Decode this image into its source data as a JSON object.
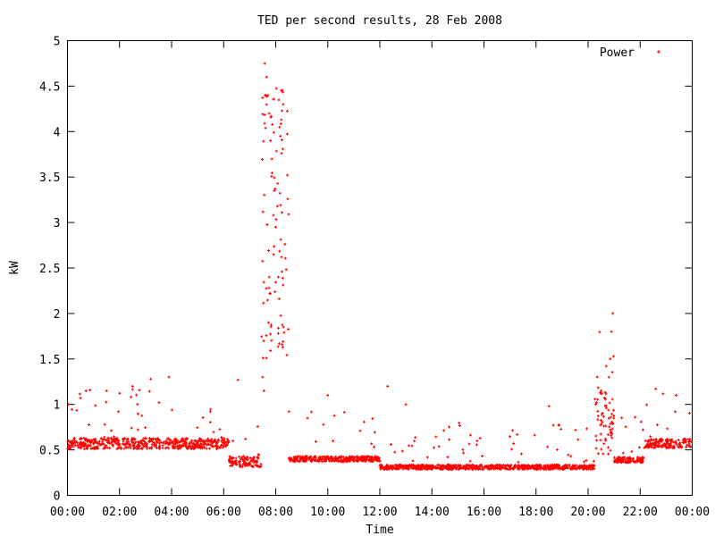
{
  "chart_data": {
    "type": "scatter",
    "title": "TED per second results, 28 Feb 2008",
    "xlabel": "Time",
    "ylabel": "kW",
    "x_ticks": [
      "00:00",
      "02:00",
      "04:00",
      "06:00",
      "08:00",
      "10:00",
      "12:00",
      "14:00",
      "16:00",
      "18:00",
      "20:00",
      "22:00",
      "00:00"
    ],
    "y_ticks": [
      "0",
      "0.5",
      "1",
      "1.5",
      "2",
      "2.5",
      "3",
      "3.5",
      "4",
      "4.5",
      "5"
    ],
    "xlim_hours": [
      0,
      24
    ],
    "ylim": [
      0,
      5
    ],
    "grid": false,
    "legend_position": "top-right",
    "series": [
      {
        "name": "Power",
        "color": "#ff0000",
        "marker": "plus",
        "segments": [
          {
            "start_hour": 0.0,
            "end_hour": 6.2,
            "base": 0.57,
            "spread": 0.06,
            "spike_prob": 0.06,
            "spike_max": 0.65
          },
          {
            "start_hour": 6.2,
            "end_hour": 7.45,
            "base": 0.37,
            "spread": 0.06,
            "spike_prob": 0.05,
            "spike_max": 0.35
          },
          {
            "start_hour": 7.45,
            "end_hour": 8.5,
            "base": 3.0,
            "spread": 1.5,
            "spike_prob": 0.0,
            "spike_max": 0.0
          },
          {
            "start_hour": 8.5,
            "end_hour": 12.0,
            "base": 0.4,
            "spread": 0.03,
            "spike_prob": 0.05,
            "spike_max": 0.6
          },
          {
            "start_hour": 12.0,
            "end_hour": 20.25,
            "base": 0.31,
            "spread": 0.025,
            "spike_prob": 0.05,
            "spike_max": 0.5
          },
          {
            "start_hour": 20.25,
            "end_hour": 21.0,
            "base": 0.8,
            "spread": 0.35,
            "spike_prob": 0.15,
            "spike_max": 1.1
          },
          {
            "start_hour": 21.0,
            "end_hour": 22.15,
            "base": 0.39,
            "spread": 0.03,
            "spike_prob": 0.05,
            "spike_max": 0.5
          },
          {
            "start_hour": 22.15,
            "end_hour": 24.0,
            "base": 0.57,
            "spread": 0.05,
            "spike_prob": 0.06,
            "spike_max": 0.55
          }
        ],
        "peak_points": [
          {
            "hour": 7.58,
            "kw": 4.75
          },
          {
            "hour": 7.65,
            "kw": 4.6
          },
          {
            "hour": 7.7,
            "kw": 4.4
          },
          {
            "hour": 7.75,
            "kw": 4.2
          },
          {
            "hour": 7.8,
            "kw": 3.9
          },
          {
            "hour": 7.85,
            "kw": 3.7
          },
          {
            "hour": 7.95,
            "kw": 3.35
          },
          {
            "hour": 8.0,
            "kw": 2.95
          },
          {
            "hour": 8.15,
            "kw": 4.05
          },
          {
            "hour": 8.18,
            "kw": 3.95
          },
          {
            "hour": 7.75,
            "kw": 2.4
          },
          {
            "hour": 7.72,
            "kw": 1.9
          },
          {
            "hour": 8.3,
            "kw": 1.85
          },
          {
            "hour": 8.1,
            "kw": 2.4
          },
          {
            "hour": 7.5,
            "kw": 1.3
          },
          {
            "hour": 7.55,
            "kw": 1.15
          },
          {
            "hour": 6.55,
            "kw": 1.27
          },
          {
            "hour": 12.3,
            "kw": 1.2
          },
          {
            "hour": 20.95,
            "kw": 2.0
          },
          {
            "hour": 20.9,
            "kw": 1.8
          },
          {
            "hour": 20.85,
            "kw": 1.5
          },
          {
            "hour": 20.8,
            "kw": 1.3
          },
          {
            "hour": 20.5,
            "kw": 1.15
          },
          {
            "hour": 22.6,
            "kw": 1.17
          },
          {
            "hour": 0.5,
            "kw": 1.07
          },
          {
            "hour": 1.5,
            "kw": 1.15
          },
          {
            "hour": 2.5,
            "kw": 1.2
          },
          {
            "hour": 3.2,
            "kw": 1.28
          },
          {
            "hour": 3.9,
            "kw": 1.3
          },
          {
            "hour": 10.0,
            "kw": 1.1
          },
          {
            "hour": 13.0,
            "kw": 1.0
          },
          {
            "hour": 18.5,
            "kw": 0.98
          }
        ]
      }
    ]
  }
}
